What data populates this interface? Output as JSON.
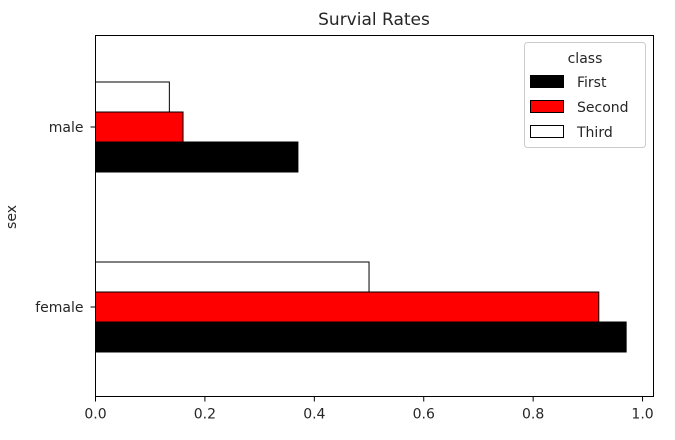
{
  "chart_data": {
    "type": "bar",
    "orientation": "horizontal",
    "title": "Survial Rates",
    "xlabel": "",
    "ylabel": "sex",
    "categories": [
      "male",
      "female"
    ],
    "series": [
      {
        "name": "First",
        "values": [
          0.37,
          0.97
        ],
        "color": "#000000"
      },
      {
        "name": "Second",
        "values": [
          0.16,
          0.92
        ],
        "color": "#ff0000"
      },
      {
        "name": "Third",
        "values": [
          0.135,
          0.5
        ],
        "color": "#ffffff"
      }
    ],
    "xlim": [
      0.0,
      1.02
    ],
    "xticks": [
      "0.0",
      "0.2",
      "0.4",
      "0.6",
      "0.8",
      "1.0"
    ],
    "grid": false,
    "legend": {
      "title": "class",
      "placement": "top-right"
    }
  }
}
